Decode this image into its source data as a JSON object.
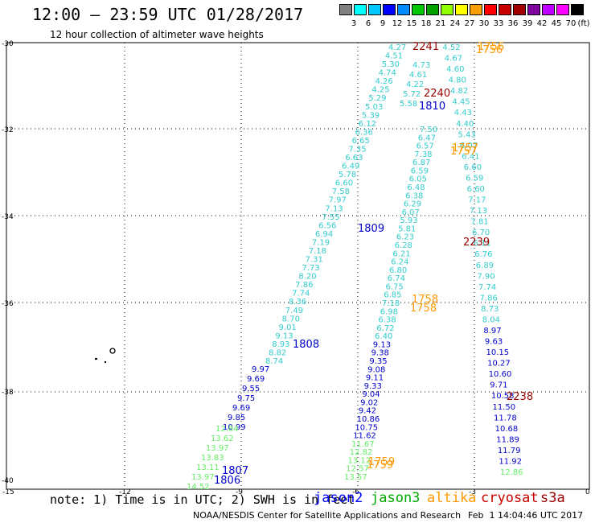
{
  "title": "12:00 – 23:59 UTC 01/28/2017",
  "subtitle": "12 hour collection of altimeter wave heights",
  "scale": {
    "unit": "(ft)",
    "swatches": [
      "#808080",
      "#00ffff",
      "#00c8ff",
      "#0000ff",
      "#008cff",
      "#00c800",
      "#00a000",
      "#90ff00",
      "#ffff00",
      "#ffa000",
      "#ff0000",
      "#c80000",
      "#a00000",
      "#8000a0",
      "#c000ff",
      "#ff00ff",
      "#000000"
    ],
    "labels": [
      "3",
      "6",
      "9",
      "12",
      "15",
      "18",
      "21",
      "24",
      "27",
      "30",
      "33",
      "36",
      "39",
      "42",
      "45",
      "70"
    ]
  },
  "axes": {
    "lat_labels": [
      "-30",
      "-32",
      "-34",
      "-36",
      "-38",
      "-40"
    ],
    "lon_labels": [
      "-15",
      "-12",
      "-9",
      "-6",
      "-3",
      "0"
    ]
  },
  "colors": {
    "cyan": "#33cccc",
    "blue": "#0000cc",
    "green": "#66ee66",
    "orange": "#ff9900",
    "darkred": "#990000"
  },
  "tracks": {
    "track_cyan_left": [
      "4.27",
      "4.51",
      "5.30",
      "4.74",
      "4.26",
      "4.25",
      "5.29",
      "5.03",
      "5.39",
      "6.12",
      "6.36",
      "6.65",
      "7.35",
      "6.63",
      "6.49",
      "5.78",
      "6.60",
      "7.58",
      "7.97",
      "7.13",
      "7.55",
      "6.56",
      "6.94",
      "7.19",
      "7.18",
      "7.31",
      "7.73",
      "8.20",
      "7.86",
      "7.74",
      "8.36",
      "7.49",
      "8.70",
      "9.01",
      "9.13",
      "8.93",
      "8.82",
      "8.74"
    ],
    "track_cyan_left2": [
      "4.73",
      "4.61",
      "4.22",
      "5.72",
      "5.58"
    ],
    "track_blue_left": [
      "9.97",
      "9.69",
      "9.55",
      "9.75",
      "9.69",
      "9.85",
      "10.99"
    ],
    "track_green_left": [
      "12.84",
      "13.62",
      "13.97",
      "13.83",
      "13.11",
      "13.97",
      "14.52"
    ],
    "track_mid": [
      "7.50",
      "6.47",
      "6.57",
      "7.38",
      "6.87",
      "6.59",
      "6.05",
      "6.48",
      "6.38",
      "6.29",
      "6.07",
      "5.93",
      "5.81",
      "6.23",
      "6.28",
      "6.21",
      "6.24",
      "6.80",
      "6.74",
      "6.75",
      "6.85",
      "7.18",
      "6.98",
      "6.38",
      "6.72",
      "6.40",
      "9.13",
      "9.38",
      "9.35",
      "9.08",
      "9.11",
      "9.33",
      "9.04",
      "9.02",
      "9.42",
      "10.86",
      "10.75",
      "11.62",
      "11.67",
      "12.82",
      "13.12",
      "12.57",
      "13.57"
    ],
    "track_right": [
      "4.52",
      "4.67",
      "4.60",
      "4.80",
      "4.82",
      "4.45",
      "4.43",
      "4.40",
      "5.43",
      "6.07",
      "6.41",
      "6.60",
      "6.59",
      "6.60",
      "7.17",
      "7.13",
      "7.81",
      "6.70",
      "6.11",
      "6.76",
      "6.89",
      "7.90",
      "7.74",
      "7.86",
      "8.73",
      "8.04",
      "8.97",
      "9.63",
      "10.15",
      "10.27",
      "10.60",
      "9.71",
      "10.58",
      "11.50",
      "11.78",
      "10.68",
      "11.89",
      "11.79",
      "11.92",
      "12.86"
    ]
  },
  "times": {
    "t2241": "2241",
    "t1756a": "1756",
    "t1756b": "1756",
    "t2240": "2240",
    "t1810": "1810",
    "t1757a": "1757",
    "t1757b": "1757",
    "t1809": "1809",
    "t2239": "2239",
    "t1758a": "1758",
    "t1758b": "1758",
    "t1808": "1808",
    "t2238": "2238",
    "t1759a": "1759",
    "t1759b": "1759",
    "t1807": "1807",
    "t1806": "1806"
  },
  "note": "note: 1) Time is in UTC; 2) SWH is in feet",
  "satellites": [
    {
      "name": "jason2",
      "color": "#0000ff"
    },
    {
      "name": "jason3",
      "color": "#00aa00"
    },
    {
      "name": "altika",
      "color": "#ff9900"
    },
    {
      "name": "cryosat",
      "color": "#cc0000"
    },
    {
      "name": "s3a",
      "color": "#990000"
    }
  ],
  "credit": "NOAA/NESDIS Center for Satellite Applications and Research",
  "stamp": "Feb  1 14:04:46 UTC 2017"
}
